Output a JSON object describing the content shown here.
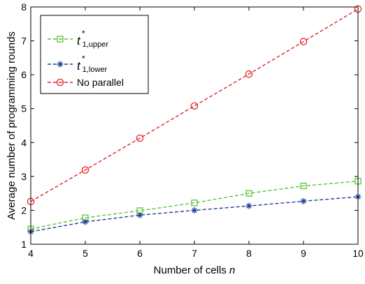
{
  "chart_data": {
    "type": "line",
    "title": "",
    "xlabel": "Number of cells",
    "xlabel_var": "n",
    "ylabel": "Average number of programming rounds",
    "x": [
      4,
      5,
      6,
      7,
      8,
      9,
      10
    ],
    "xlim": [
      4,
      10
    ],
    "ylim": [
      1,
      8
    ],
    "xticks": [
      "4",
      "5",
      "6",
      "7",
      "8",
      "9",
      "10"
    ],
    "yticks": [
      "1",
      "2",
      "3",
      "4",
      "5",
      "6",
      "7",
      "8"
    ],
    "grid": false,
    "legend_position": "top-left",
    "series": [
      {
        "name": "t*1,upper",
        "symbol": "t",
        "superscript": "*",
        "subscript": "1,upper",
        "color": "#5cc43a",
        "marker": "square",
        "values": [
          1.45,
          1.78,
          1.99,
          2.22,
          2.5,
          2.72,
          2.86
        ]
      },
      {
        "name": "t*1,lower",
        "symbol": "t",
        "superscript": "*",
        "subscript": "1,lower",
        "color": "#1f3f9e",
        "marker": "star",
        "values": [
          1.37,
          1.66,
          1.86,
          2.0,
          2.13,
          2.27,
          2.4
        ]
      },
      {
        "name": "No parallel",
        "color": "#e3242b",
        "marker": "circle",
        "values": [
          2.26,
          3.19,
          4.13,
          5.08,
          6.02,
          6.98,
          7.94
        ]
      }
    ]
  }
}
